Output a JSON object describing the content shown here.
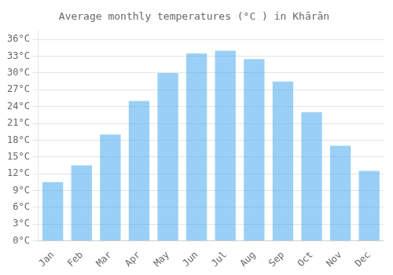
{
  "chart_data": {
    "type": "bar",
    "title": "Average monthly temperatures (°C ) in Khārān",
    "categories": [
      "Jan",
      "Feb",
      "Mar",
      "Apr",
      "May",
      "Jun",
      "Jul",
      "Aug",
      "Sep",
      "Oct",
      "Nov",
      "Dec"
    ],
    "values": [
      10.5,
      13.5,
      19.0,
      25.0,
      30.0,
      33.5,
      34.0,
      32.5,
      28.5,
      23.0,
      17.0,
      12.5
    ],
    "ylim": [
      0,
      37.5
    ],
    "yticks": [
      {
        "value": 0,
        "label": "0°C"
      },
      {
        "value": 3,
        "label": "3°C"
      },
      {
        "value": 6,
        "label": "6°C"
      },
      {
        "value": 9,
        "label": "9°C"
      },
      {
        "value": 12,
        "label": "12°C"
      },
      {
        "value": 15,
        "label": "15°C"
      },
      {
        "value": 18,
        "label": "18°C"
      },
      {
        "value": 21,
        "label": "21°C"
      },
      {
        "value": 24,
        "label": "24°C"
      },
      {
        "value": 27,
        "label": "27°C"
      },
      {
        "value": 30,
        "label": "30°C"
      },
      {
        "value": 33,
        "label": "33°C"
      },
      {
        "value": 36,
        "label": "36°C"
      }
    ],
    "grid": true
  }
}
